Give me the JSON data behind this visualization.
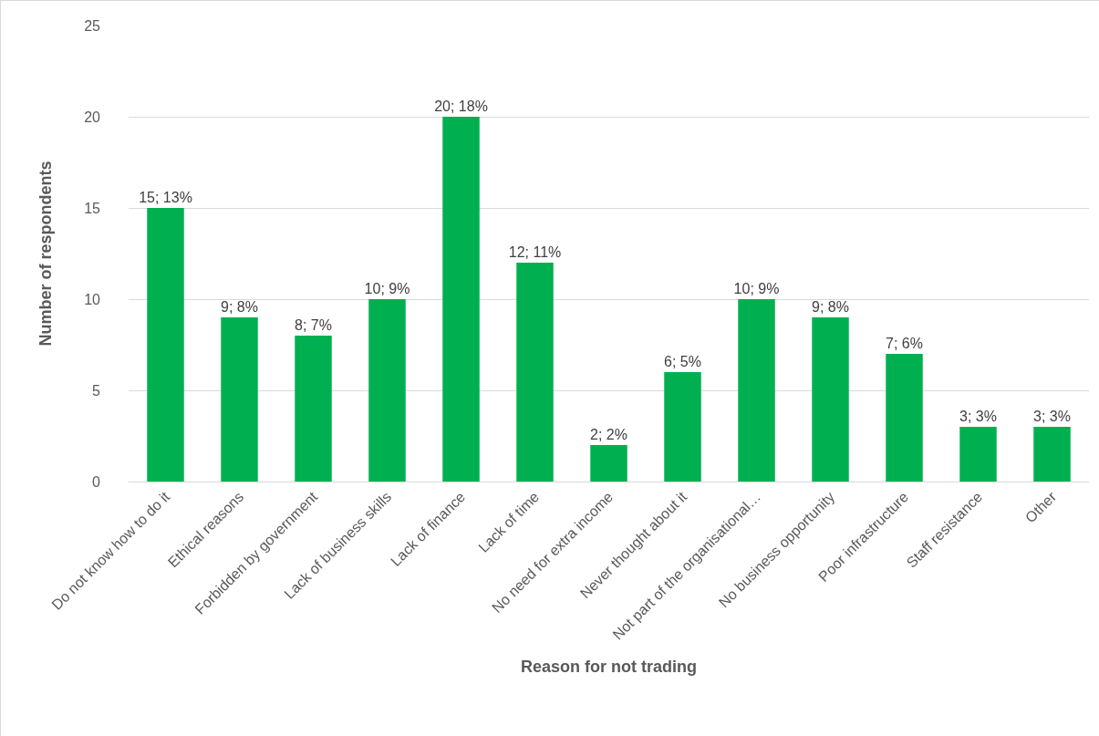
{
  "chart_data": {
    "type": "bar",
    "xlabel": "Reason for not trading",
    "ylabel": "Number of respondents",
    "categories": [
      "Do not know how to do it",
      "Ethical reasons",
      "Forbidden by government",
      "Lack of business skills",
      "Lack of finance",
      "Lack of time",
      "No need for extra income",
      "Never thought about it",
      "Not part of the organisational…",
      "No business opportunity",
      "Poor infrastructure",
      "Staff resistance",
      "Other"
    ],
    "values": [
      15,
      9,
      8,
      10,
      20,
      12,
      2,
      6,
      10,
      9,
      7,
      3,
      3
    ],
    "value_labels": [
      "15; 13%",
      "9; 8%",
      "8; 7%",
      "10; 9%",
      "20; 18%",
      "12; 11%",
      "2; 2%",
      "6; 5%",
      "10; 9%",
      "9; 8%",
      "7; 6%",
      "3; 3%",
      "3; 3%"
    ],
    "color": "#00b050",
    "ylim": [
      0,
      25
    ],
    "yticks": [
      0,
      5,
      10,
      15,
      20,
      25
    ],
    "grid": "y",
    "legend": false
  }
}
